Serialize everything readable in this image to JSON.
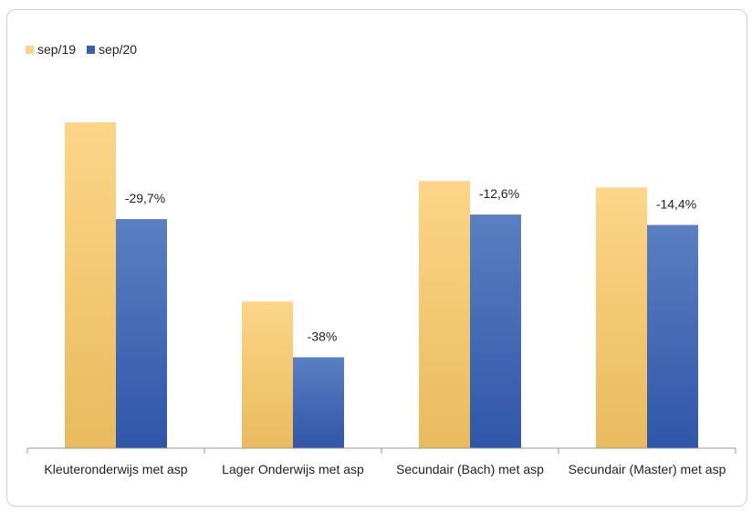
{
  "chart_data": {
    "type": "bar",
    "categories": [
      "Kleuteronderwijs met asp",
      "Lager Onderwijs met asp",
      "Secundair (Bach) met asp",
      "Secundair (Master) met asp"
    ],
    "series": [
      {
        "name": "sep/19",
        "values": [
          100,
          45,
          82,
          80
        ],
        "color_top": "#fdd588",
        "color_bottom": "#e9bb5e"
      },
      {
        "name": "sep/20",
        "values": [
          70.3,
          27.9,
          71.7,
          68.5
        ],
        "color_top": "#5b7fc2",
        "color_bottom": "#2f56a8"
      }
    ],
    "data_labels": [
      "-29,7%",
      "-38%",
      "-12,6%",
      "-14,4%"
    ],
    "ylim": [
      0,
      100
    ],
    "legend_position": "top-left",
    "grid": false
  }
}
